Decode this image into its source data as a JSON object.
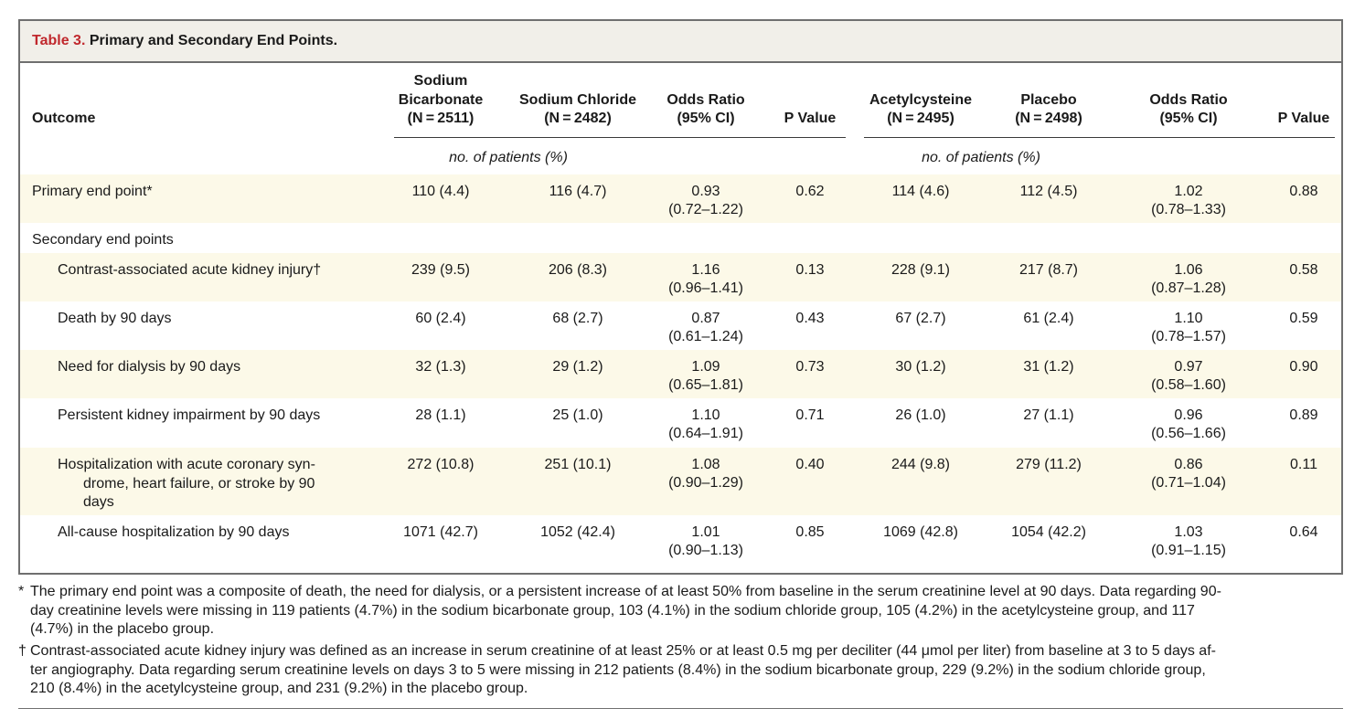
{
  "table": {
    "label": "Table 3.",
    "title": "Primary and Secondary End Points.",
    "headers": {
      "outcome": "Outcome",
      "bicarb": [
        "Sodium",
        "Bicarbonate",
        "(N = 2511)"
      ],
      "chloride": [
        "Sodium Chloride",
        "(N = 2482)"
      ],
      "or1": [
        "Odds Ratio",
        "(95% CI)"
      ],
      "p1": "P Value",
      "acetyl": [
        "Acetylcysteine",
        "(N = 2495)"
      ],
      "placebo": [
        "Placebo",
        "(N = 2498)"
      ],
      "or2": [
        "Odds Ratio",
        "(95% CI)"
      ],
      "p2": "P Value"
    },
    "subheader": "no. of patients (%)",
    "rows": [
      {
        "label": "Primary end point*",
        "bicarb": "110 (4.4)",
        "chloride": "116 (4.7)",
        "or1": "0.93",
        "ci1": "(0.72–1.22)",
        "p1": "0.62",
        "acetyl": "114 (4.6)",
        "placebo": "112 (4.5)",
        "or2": "1.02",
        "ci2": "(0.78–1.33)",
        "p2": "0.88"
      },
      {
        "label": "Secondary end points"
      },
      {
        "label": "Contrast-associated acute kidney injury†",
        "bicarb": "239 (9.5)",
        "chloride": "206 (8.3)",
        "or1": "1.16",
        "ci1": "(0.96–1.41)",
        "p1": "0.13",
        "acetyl": "228 (9.1)",
        "placebo": "217 (8.7)",
        "or2": "1.06",
        "ci2": "(0.87–1.28)",
        "p2": "0.58"
      },
      {
        "label": "Death by 90 days",
        "bicarb": "60 (2.4)",
        "chloride": "68 (2.7)",
        "or1": "0.87",
        "ci1": "(0.61–1.24)",
        "p1": "0.43",
        "acetyl": "67 (2.7)",
        "placebo": "61 (2.4)",
        "or2": "1.10",
        "ci2": "(0.78–1.57)",
        "p2": "0.59"
      },
      {
        "label": "Need for dialysis by 90 days",
        "bicarb": "32 (1.3)",
        "chloride": "29 (1.2)",
        "or1": "1.09",
        "ci1": "(0.65–1.81)",
        "p1": "0.73",
        "acetyl": "30 (1.2)",
        "placebo": "31 (1.2)",
        "or2": "0.97",
        "ci2": "(0.58–1.60)",
        "p2": "0.90"
      },
      {
        "label": "Persistent kidney impairment by 90 days",
        "bicarb": "28 (1.1)",
        "chloride": "25 (1.0)",
        "or1": "1.10",
        "ci1": "(0.64–1.91)",
        "p1": "0.71",
        "acetyl": "26 (1.0)",
        "placebo": "27 (1.1)",
        "or2": "0.96",
        "ci2": "(0.56–1.66)",
        "p2": "0.89"
      },
      {
        "label_lines": [
          "Hospitalization with acute coronary syn-",
          "drome, heart failure, or stroke by 90",
          "days"
        ],
        "bicarb": "272 (10.8)",
        "chloride": "251 (10.1)",
        "or1": "1.08",
        "ci1": "(0.90–1.29)",
        "p1": "0.40",
        "acetyl": "244 (9.8)",
        "placebo": "279 (11.2)",
        "or2": "0.86",
        "ci2": "(0.71–1.04)",
        "p2": "0.11"
      },
      {
        "label": "All-cause hospitalization by 90 days",
        "bicarb": "1071 (42.7)",
        "chloride": "1052 (42.4)",
        "or1": "1.01",
        "ci1": "(0.90–1.13)",
        "p1": "0.85",
        "acetyl": "1069 (42.8)",
        "placebo": "1054 (42.2)",
        "or2": "1.03",
        "ci2": "(0.91–1.15)",
        "p2": "0.64"
      }
    ]
  },
  "footnotes": [
    {
      "mark": "*",
      "lines": [
        "The primary end point was a composite of death, the need for dialysis, or a persistent increase of at least 50% from baseline in the serum creatinine level at 90 days. Data regarding 90-",
        "day creatinine levels were missing in 119 patients (4.7%) in the sodium bicarbonate group, 103 (4.1%) in the sodium chloride group, 105 (4.2%) in the acetylcysteine group, and 117",
        "(4.7%) in the placebo group."
      ]
    },
    {
      "mark": "†",
      "lines": [
        "Contrast-associated acute kidney injury was defined as an increase in serum creatinine of at least 25% or at least 0.5 mg per deciliter (44 μmol per liter) from baseline at 3 to 5 days af-",
        "ter angiography. Data regarding serum creatinine levels on days 3 to 5 were missing in 212 patients (8.4%) in the sodium bicarbonate group, 229 (9.2%) in the sodium chloride group,",
        "210 (8.4%) in the acetylcysteine group, and 231 (9.2%) in the placebo group."
      ]
    }
  ]
}
